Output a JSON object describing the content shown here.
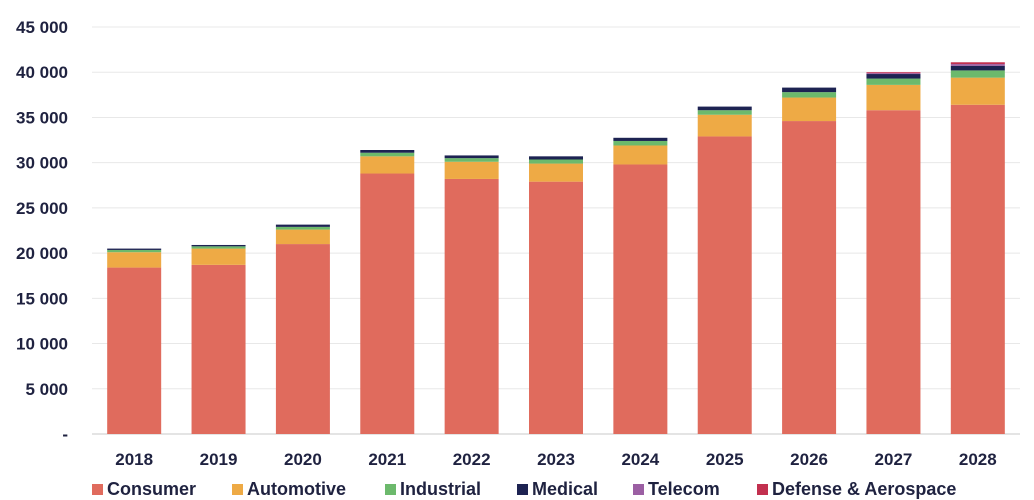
{
  "chart_data": {
    "type": "bar",
    "stacked": true,
    "categories": [
      "2018",
      "2019",
      "2020",
      "2021",
      "2022",
      "2023",
      "2024",
      "2025",
      "2026",
      "2027",
      "2028"
    ],
    "series": [
      {
        "name": "Consumer",
        "color": "#e06b5d",
        "values": [
          18400,
          18700,
          21000,
          28800,
          28200,
          27900,
          29800,
          32900,
          34600,
          35800,
          36400
        ]
      },
      {
        "name": "Automotive",
        "color": "#eeaa45",
        "values": [
          1700,
          1800,
          1600,
          1900,
          1900,
          2000,
          2100,
          2400,
          2600,
          2800,
          3000
        ]
      },
      {
        "name": "Industrial",
        "color": "#6cb96c",
        "values": [
          250,
          250,
          300,
          400,
          400,
          450,
          500,
          500,
          600,
          700,
          800
        ]
      },
      {
        "name": "Medical",
        "color": "#1d2352",
        "values": [
          150,
          150,
          250,
          300,
          300,
          350,
          350,
          400,
          500,
          500,
          500
        ]
      },
      {
        "name": "Telecom",
        "color": "#9b5fa3",
        "values": [
          0,
          0,
          0,
          0,
          0,
          0,
          0,
          0,
          0,
          100,
          200
        ]
      },
      {
        "name": "Defense & Aerospace",
        "color": "#c2304f",
        "values": [
          0,
          0,
          0,
          0,
          0,
          0,
          0,
          0,
          0,
          100,
          200
        ]
      }
    ],
    "y_ticks": [
      "45 000",
      "40 000",
      "35 000",
      "30 000",
      "25 000",
      "20 000",
      "15 000",
      "10 000",
      "5 000",
      "-"
    ],
    "ylim": [
      0,
      45000
    ],
    "grid": true,
    "legend_position": "bottom"
  }
}
